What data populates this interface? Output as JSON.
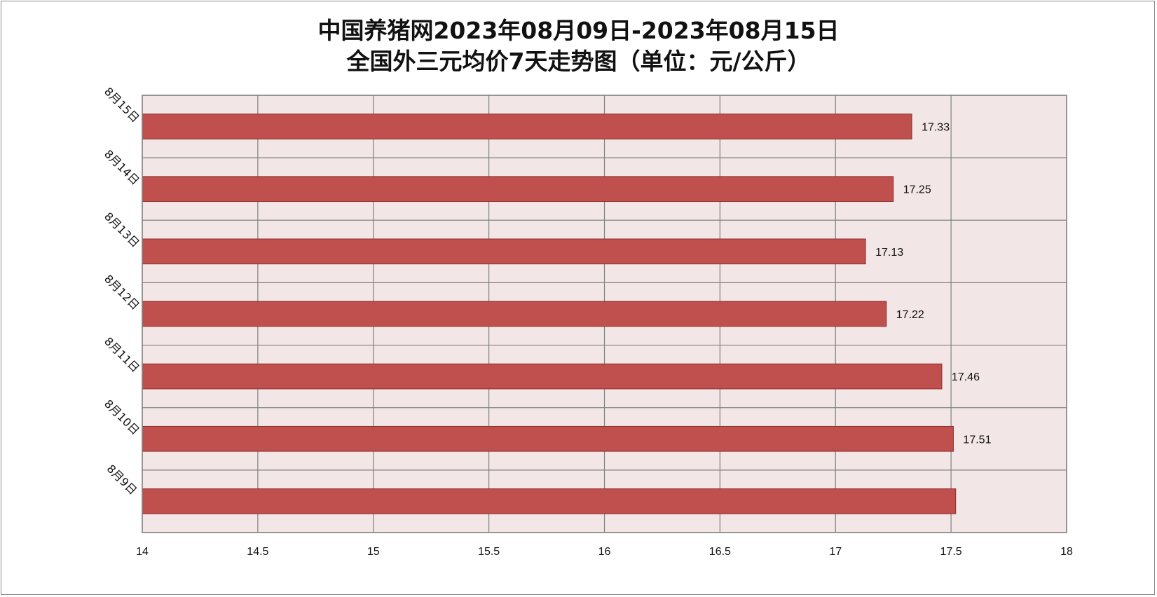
{
  "chart_data": {
    "type": "bar",
    "orientation": "horizontal",
    "title": "中国养猪网2023年08月09日-2023年08月15日",
    "subtitle": "全国外三元均价7天走势图（单位：元/公斤）",
    "categories": [
      "8月9日",
      "8月10日",
      "8月11日",
      "8月12日",
      "8月13日",
      "8月14日",
      "8月15日"
    ],
    "values": [
      17.52,
      17.51,
      17.46,
      17.22,
      17.13,
      17.25,
      17.33
    ],
    "data_labels": [
      "",
      "17.51",
      "17.46",
      "17.22",
      "17.13",
      "17.25",
      "17.33"
    ],
    "xlim": [
      14,
      18
    ],
    "x_ticks": [
      "14",
      "14.5",
      "15",
      "15.5",
      "16",
      "16.5",
      "17",
      "17.5",
      "18"
    ],
    "xlabel": "",
    "ylabel": "",
    "grid": true,
    "legend": "none",
    "colors": {
      "bar_fill": "#c0504d",
      "bar_stroke": "#8c2d2a",
      "plot_background": "#f2e6e6",
      "grid": "#808080"
    }
  }
}
